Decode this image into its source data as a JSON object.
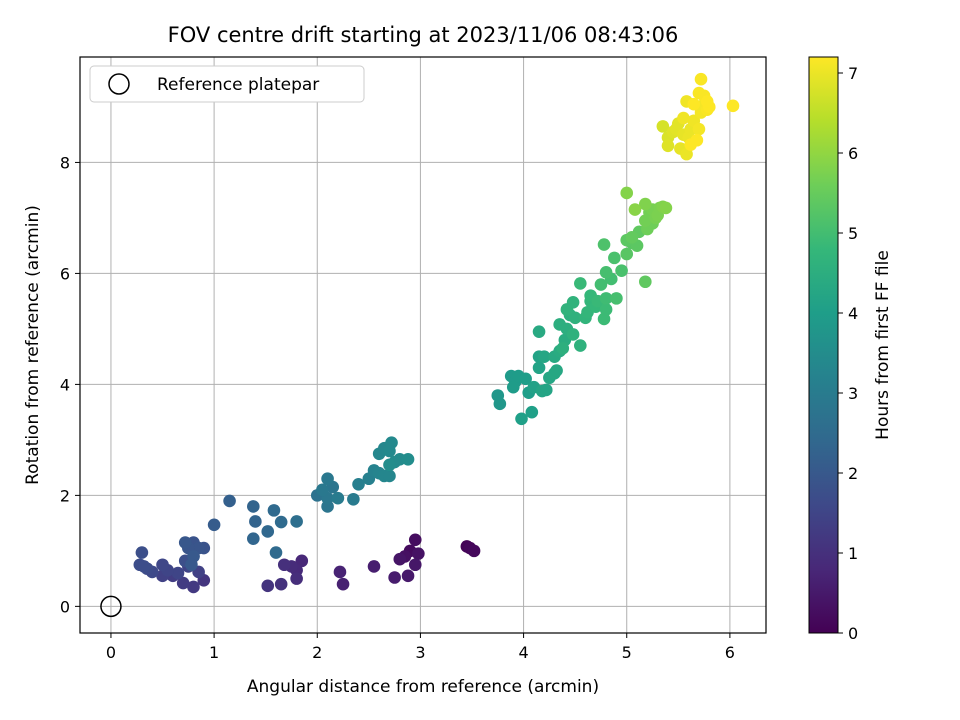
{
  "chart_data": {
    "type": "scatter",
    "title": "FOV centre drift starting at 2023/11/06 08:43:06",
    "xlabel": "Angular distance from reference (arcmin)",
    "ylabel": "Rotation from reference (arcmin)",
    "xlim": [
      -0.3,
      6.35
    ],
    "ylim": [
      -0.48,
      9.9
    ],
    "xticks": [
      0,
      1,
      2,
      3,
      4,
      5,
      6
    ],
    "yticks": [
      0,
      2,
      4,
      6,
      8
    ],
    "grid": true,
    "legend": {
      "placement": "top-left",
      "entries": [
        "Reference platepar"
      ]
    },
    "reference_point": {
      "x": 0,
      "y": 0,
      "label": "Reference platepar"
    },
    "colorbar": {
      "label": "Hours from first FF file",
      "colormap": "viridis",
      "range": [
        0,
        7.2
      ],
      "ticks": [
        0,
        1,
        2,
        3,
        4,
        5,
        6,
        7
      ]
    },
    "points": [
      [
        3.45,
        1.08,
        0.05
      ],
      [
        3.48,
        1.05,
        0.1
      ],
      [
        3.52,
        1.0,
        0.15
      ],
      [
        2.9,
        1.0,
        0.2
      ],
      [
        2.95,
        1.2,
        0.25
      ],
      [
        2.85,
        0.9,
        0.3
      ],
      [
        2.98,
        0.95,
        0.35
      ],
      [
        2.8,
        0.85,
        0.4
      ],
      [
        2.95,
        0.75,
        0.45
      ],
      [
        2.88,
        0.55,
        0.5
      ],
      [
        2.75,
        0.52,
        0.55
      ],
      [
        2.55,
        0.72,
        0.6
      ],
      [
        2.25,
        0.4,
        0.65
      ],
      [
        2.22,
        0.62,
        0.7
      ],
      [
        1.85,
        0.82,
        0.8
      ],
      [
        1.8,
        0.65,
        0.85
      ],
      [
        1.75,
        0.72,
        0.9
      ],
      [
        1.8,
        0.5,
        0.95
      ],
      [
        1.68,
        0.75,
        1.0
      ],
      [
        1.65,
        0.4,
        1.05
      ],
      [
        1.52,
        0.37,
        1.1
      ],
      [
        0.9,
        0.47,
        1.15
      ],
      [
        0.8,
        0.35,
        1.2
      ],
      [
        0.7,
        0.42,
        1.25
      ],
      [
        0.6,
        0.55,
        1.3
      ],
      [
        0.5,
        0.55,
        1.4
      ],
      [
        0.85,
        0.62,
        1.4
      ],
      [
        0.75,
        0.72,
        1.45
      ],
      [
        0.65,
        0.6,
        1.5
      ],
      [
        0.55,
        0.65,
        1.5
      ],
      [
        0.5,
        0.75,
        1.55
      ],
      [
        0.4,
        0.62,
        1.6
      ],
      [
        0.35,
        0.68,
        1.65
      ],
      [
        0.28,
        0.75,
        1.7
      ],
      [
        0.32,
        0.72,
        1.7
      ],
      [
        0.3,
        0.97,
        1.75
      ],
      [
        0.72,
        0.82,
        1.75
      ],
      [
        0.8,
        0.9,
        1.8
      ],
      [
        0.9,
        1.05,
        1.85
      ],
      [
        0.8,
        1.15,
        1.85
      ],
      [
        0.85,
        1.05,
        1.9
      ],
      [
        0.75,
        1.05,
        1.9
      ],
      [
        0.72,
        1.15,
        1.95
      ],
      [
        0.8,
        0.9,
        2.0
      ],
      [
        0.78,
        0.75,
        2.0
      ],
      [
        1.0,
        1.47,
        2.1
      ],
      [
        1.15,
        1.9,
        2.2
      ],
      [
        1.38,
        1.8,
        2.3
      ],
      [
        1.4,
        1.53,
        2.3
      ],
      [
        1.38,
        1.22,
        2.35
      ],
      [
        1.52,
        1.35,
        2.4
      ],
      [
        1.58,
        1.73,
        2.45
      ],
      [
        1.65,
        1.52,
        2.5
      ],
      [
        1.6,
        0.97,
        2.5
      ],
      [
        1.8,
        1.53,
        2.6
      ],
      [
        2.0,
        2.0,
        2.7
      ],
      [
        2.05,
        2.05,
        2.75
      ],
      [
        2.1,
        1.8,
        2.8
      ],
      [
        2.15,
        2.15,
        2.8
      ],
      [
        2.1,
        1.95,
        2.85
      ],
      [
        2.1,
        2.3,
        2.9
      ],
      [
        2.05,
        2.1,
        2.9
      ],
      [
        2.2,
        1.95,
        3.0
      ],
      [
        2.35,
        1.93,
        3.0
      ],
      [
        2.4,
        2.2,
        3.1
      ],
      [
        2.5,
        2.3,
        3.15
      ],
      [
        2.55,
        2.45,
        3.2
      ],
      [
        2.6,
        2.4,
        3.25
      ],
      [
        2.65,
        2.35,
        3.3
      ],
      [
        2.7,
        2.35,
        3.3
      ],
      [
        2.6,
        2.75,
        3.35
      ],
      [
        2.65,
        2.85,
        3.35
      ],
      [
        2.72,
        2.95,
        3.4
      ],
      [
        2.7,
        2.8,
        3.4
      ],
      [
        2.75,
        2.6,
        3.45
      ],
      [
        2.8,
        2.65,
        3.45
      ],
      [
        2.88,
        2.65,
        3.5
      ],
      [
        2.7,
        2.55,
        3.5
      ],
      [
        3.75,
        3.8,
        3.8
      ],
      [
        3.77,
        3.65,
        3.8
      ],
      [
        3.88,
        4.15,
        3.9
      ],
      [
        3.92,
        4.05,
        3.9
      ],
      [
        3.9,
        3.95,
        3.95
      ],
      [
        3.95,
        4.15,
        3.95
      ],
      [
        4.02,
        4.1,
        4.0
      ],
      [
        4.05,
        3.85,
        4.0
      ],
      [
        3.98,
        3.38,
        4.05
      ],
      [
        4.08,
        3.5,
        4.05
      ],
      [
        4.1,
        3.95,
        4.1
      ],
      [
        4.15,
        4.3,
        4.15
      ],
      [
        4.15,
        4.5,
        4.15
      ],
      [
        4.18,
        3.88,
        4.2
      ],
      [
        4.22,
        3.9,
        4.2
      ],
      [
        4.2,
        4.5,
        4.25
      ],
      [
        4.25,
        4.12,
        4.25
      ],
      [
        4.3,
        4.2,
        4.3
      ],
      [
        4.32,
        4.25,
        4.3
      ],
      [
        4.3,
        4.5,
        4.35
      ],
      [
        4.15,
        4.95,
        4.35
      ],
      [
        4.35,
        4.6,
        4.4
      ],
      [
        4.4,
        4.8,
        4.45
      ],
      [
        4.35,
        5.08,
        4.5
      ],
      [
        4.42,
        5.0,
        4.5
      ],
      [
        4.38,
        4.65,
        4.55
      ],
      [
        4.45,
        5.25,
        4.55
      ],
      [
        4.5,
        5.2,
        4.6
      ],
      [
        4.48,
        4.9,
        4.6
      ],
      [
        4.55,
        4.7,
        4.6
      ],
      [
        4.42,
        5.35,
        4.65
      ],
      [
        4.48,
        5.48,
        4.65
      ],
      [
        4.6,
        5.2,
        4.7
      ],
      [
        4.62,
        5.3,
        4.75
      ],
      [
        4.65,
        5.5,
        4.75
      ],
      [
        4.65,
        5.6,
        4.8
      ],
      [
        4.7,
        5.4,
        4.8
      ],
      [
        4.55,
        5.82,
        4.85
      ],
      [
        4.72,
        5.5,
        4.85
      ],
      [
        4.78,
        5.18,
        4.9
      ],
      [
        4.8,
        5.35,
        4.9
      ],
      [
        4.8,
        5.55,
        4.95
      ],
      [
        4.75,
        5.8,
        5.0
      ],
      [
        4.85,
        5.9,
        5.0
      ],
      [
        4.8,
        6.02,
        5.05
      ],
      [
        4.9,
        5.55,
        5.05
      ],
      [
        4.95,
        6.05,
        5.1
      ],
      [
        4.88,
        6.28,
        5.1
      ],
      [
        4.78,
        6.52,
        5.15
      ],
      [
        5.0,
        6.35,
        5.3
      ],
      [
        5.05,
        6.55,
        5.3
      ],
      [
        5.1,
        6.5,
        5.35
      ],
      [
        5.0,
        6.6,
        5.35
      ],
      [
        5.12,
        6.75,
        5.4
      ],
      [
        5.18,
        5.85,
        5.4
      ],
      [
        5.05,
        6.65,
        5.45
      ],
      [
        5.2,
        6.8,
        5.6
      ],
      [
        5.25,
        6.9,
        5.6
      ],
      [
        5.18,
        6.95,
        5.65
      ],
      [
        5.22,
        7.1,
        5.65
      ],
      [
        5.25,
        7.15,
        5.7
      ],
      [
        5.28,
        7.0,
        5.7
      ],
      [
        5.3,
        7.05,
        5.75
      ],
      [
        5.32,
        7.18,
        5.75
      ],
      [
        5.18,
        7.25,
        5.8
      ],
      [
        5.35,
        7.2,
        5.8
      ],
      [
        5.38,
        7.18,
        5.85
      ],
      [
        5.0,
        7.45,
        5.85
      ],
      [
        5.08,
        7.15,
        5.9
      ],
      [
        5.35,
        8.65,
        6.75
      ],
      [
        5.4,
        8.45,
        6.8
      ],
      [
        5.4,
        8.3,
        6.85
      ],
      [
        5.45,
        8.55,
        6.85
      ],
      [
        5.48,
        8.6,
        6.9
      ],
      [
        5.5,
        8.7,
        6.9
      ],
      [
        5.52,
        8.25,
        6.95
      ],
      [
        5.55,
        8.5,
        6.95
      ],
      [
        5.6,
        8.45,
        7.0
      ],
      [
        5.58,
        8.15,
        7.0
      ],
      [
        5.62,
        8.6,
        7.0
      ],
      [
        5.55,
        8.8,
        7.05
      ],
      [
        5.58,
        9.1,
        7.05
      ],
      [
        5.65,
        8.75,
        7.05
      ],
      [
        5.7,
        8.6,
        7.1
      ],
      [
        5.72,
        8.9,
        7.1
      ],
      [
        5.75,
        9.05,
        7.1
      ],
      [
        5.7,
        9.25,
        7.15
      ],
      [
        5.72,
        9.5,
        7.15
      ],
      [
        5.75,
        9.2,
        7.15
      ],
      [
        5.78,
        8.95,
        7.15
      ],
      [
        5.8,
        9.0,
        7.2
      ],
      [
        5.68,
        8.4,
        7.2
      ],
      [
        5.62,
        8.32,
        7.2
      ],
      [
        5.65,
        9.05,
        7.2
      ],
      [
        5.78,
        9.1,
        7.2
      ],
      [
        6.03,
        9.02,
        7.2
      ]
    ]
  }
}
